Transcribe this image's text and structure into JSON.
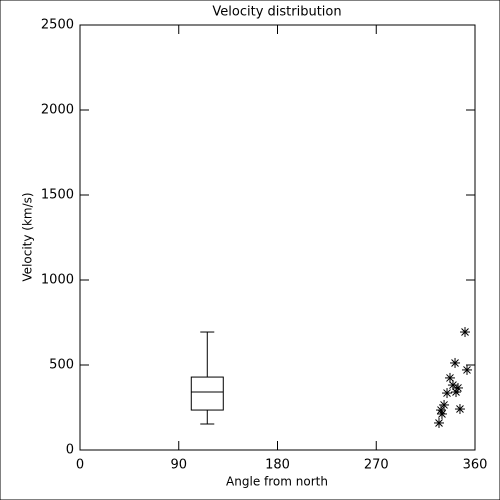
{
  "chart_data": {
    "type": "box",
    "title": "Velocity distribution",
    "x_label": "Angle from north",
    "y_label": "Velocity (km/s)",
    "box": {
      "x": 116,
      "whislo": 153,
      "q1": 235,
      "med": 341,
      "q3": 429,
      "whishi": 694
    },
    "scatter": {
      "x": [
        350.9,
        341.8,
        352.7,
        337.2,
        339.9,
        344.5,
        334.5,
        342.7,
        329,
        331.8,
        346.3,
        329.9,
        327.2
      ],
      "y": [
        694,
        512,
        471,
        424,
        382,
        365,
        335,
        341,
        235,
        265,
        241,
        212,
        159
      ]
    },
    "color": "#000000",
    "xlim": [
      0,
      360
    ],
    "xticks": [
      0,
      90,
      180,
      270,
      360
    ],
    "ylim": [
      0,
      2500
    ],
    "yticks": [
      0,
      500,
      1000,
      1500,
      2000,
      2500
    ]
  }
}
